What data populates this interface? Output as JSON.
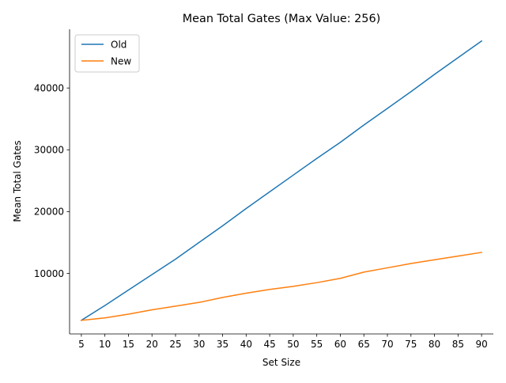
{
  "chart_data": {
    "type": "line",
    "title": "Mean Total Gates (Max Value: 256)",
    "xlabel": "Set Size",
    "ylabel": "Mean Total Gates",
    "x": [
      5,
      10,
      15,
      20,
      25,
      30,
      35,
      40,
      45,
      50,
      55,
      60,
      65,
      70,
      75,
      80,
      85,
      90
    ],
    "x_tick_labels": [
      "5",
      "10",
      "15",
      "20",
      "25",
      "30",
      "35",
      "40",
      "45",
      "50",
      "55",
      "60",
      "65",
      "70",
      "75",
      "80",
      "85",
      "90"
    ],
    "y_ticks": [
      10000,
      20000,
      30000,
      40000
    ],
    "y_tick_labels": [
      "10000",
      "20000",
      "30000",
      "40000"
    ],
    "xlim": [
      2.5,
      92.5
    ],
    "ylim": [
      200,
      49500
    ],
    "grid": false,
    "legend_position": "top-left",
    "series": [
      {
        "name": "Old",
        "color": "#1f77b4",
        "values": [
          2400,
          4800,
          7300,
          9800,
          12300,
          15000,
          17700,
          20500,
          23200,
          25900,
          28600,
          31200,
          34000,
          36700,
          39400,
          42200,
          44900,
          47600
        ]
      },
      {
        "name": "New",
        "color": "#ff7f0e",
        "values": [
          2400,
          2800,
          3400,
          4100,
          4700,
          5300,
          6100,
          6800,
          7400,
          7900,
          8500,
          9200,
          10200,
          10900,
          11600,
          12200,
          12800,
          13400
        ]
      }
    ]
  }
}
